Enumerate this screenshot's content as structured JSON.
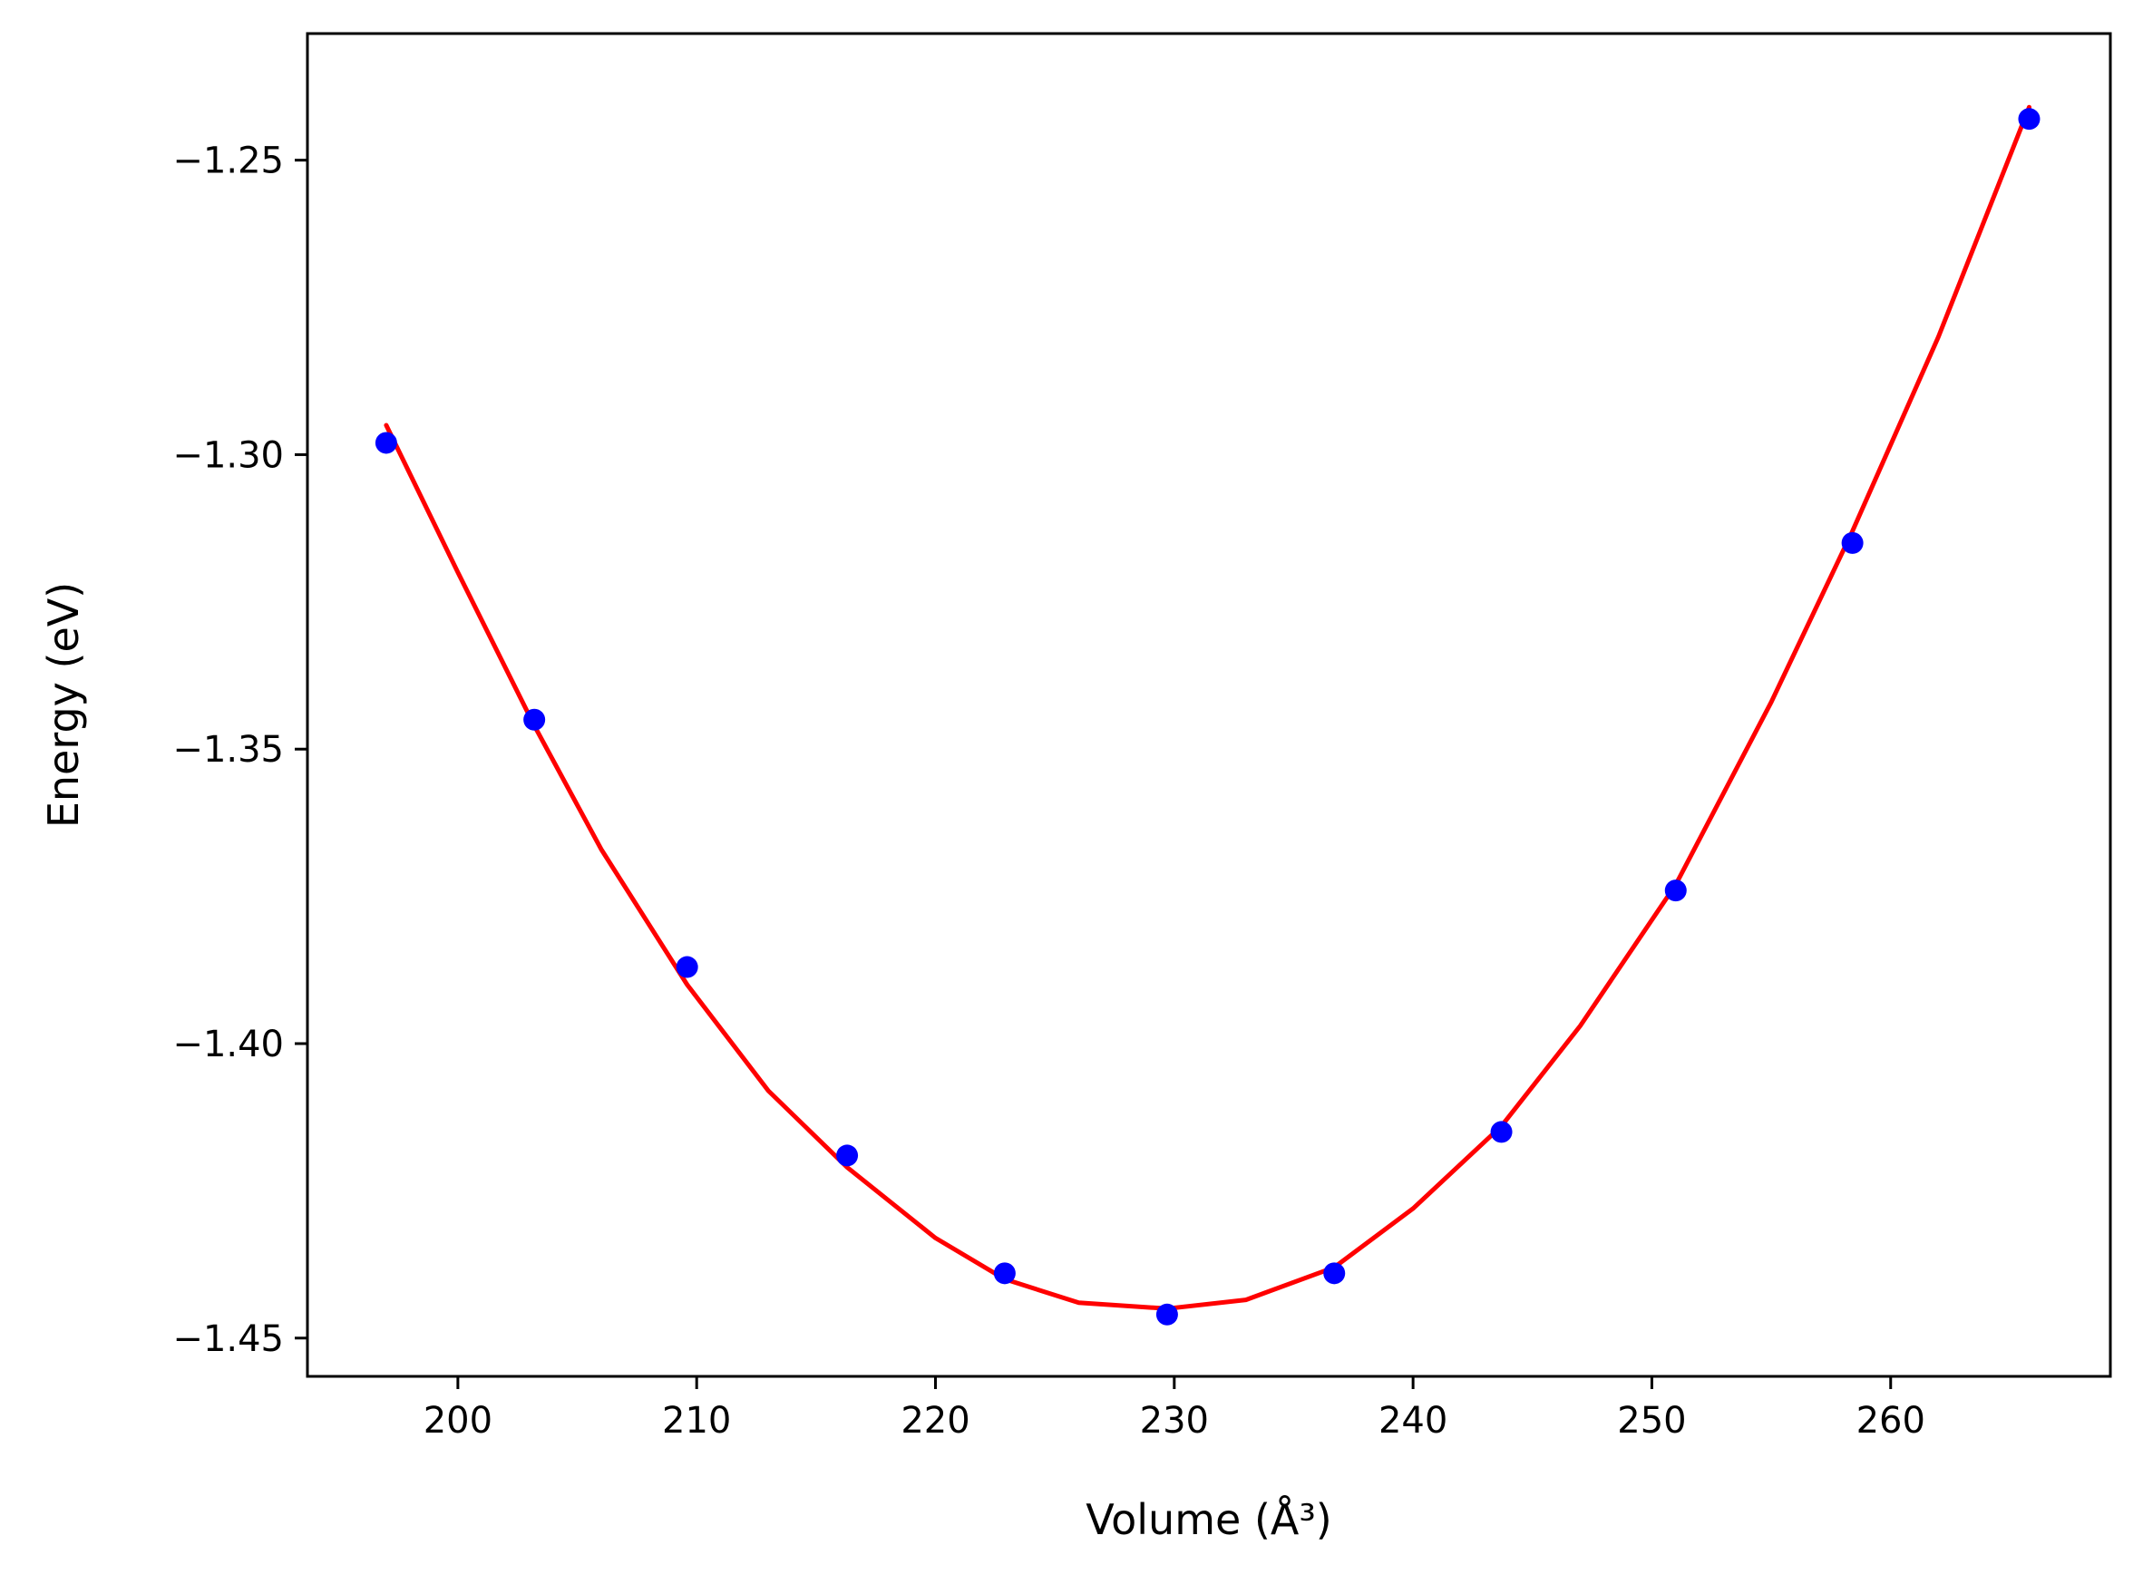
{
  "chart_data": {
    "type": "scatter",
    "xlabel": "Volume (Å³)",
    "ylabel": "Energy (eV)",
    "xlim": [
      193.7,
      269.2
    ],
    "ylim": [
      -1.4565,
      -1.2285
    ],
    "xticks": [
      200,
      210,
      220,
      230,
      240,
      250,
      260
    ],
    "yticks": [
      -1.25,
      -1.3,
      -1.35,
      -1.4,
      -1.45
    ],
    "xtick_labels": [
      "200",
      "210",
      "220",
      "230",
      "240",
      "250",
      "260"
    ],
    "ytick_labels": [
      "−1.25",
      "−1.30",
      "−1.35",
      "−1.40",
      "−1.45"
    ],
    "grid": false,
    "legend": false,
    "series": [
      {
        "kind": "points",
        "color": "#0000ff",
        "x": [
          197.0,
          203.2,
          209.6,
          216.3,
          222.9,
          229.7,
          236.7,
          243.7,
          251.0,
          258.4,
          265.8
        ],
        "y": [
          -1.298,
          -1.345,
          -1.387,
          -1.419,
          -1.439,
          -1.446,
          -1.439,
          -1.415,
          -1.374,
          -1.315,
          -1.243
        ]
      },
      {
        "kind": "fit-line",
        "color": "#ff0000",
        "x": [
          197.0,
          200.0,
          203.2,
          206.0,
          209.6,
          213.0,
          216.3,
          220.0,
          222.9,
          226.0,
          229.7,
          233.0,
          236.7,
          240.0,
          243.7,
          247.0,
          251.0,
          255.0,
          258.4,
          262.0,
          265.8
        ],
        "y": [
          -1.295,
          -1.32,
          -1.346,
          -1.367,
          -1.39,
          -1.408,
          -1.421,
          -1.433,
          -1.44,
          -1.444,
          -1.445,
          -1.4435,
          -1.438,
          -1.428,
          -1.414,
          -1.397,
          -1.373,
          -1.342,
          -1.313,
          -1.28,
          -1.241
        ]
      }
    ]
  }
}
